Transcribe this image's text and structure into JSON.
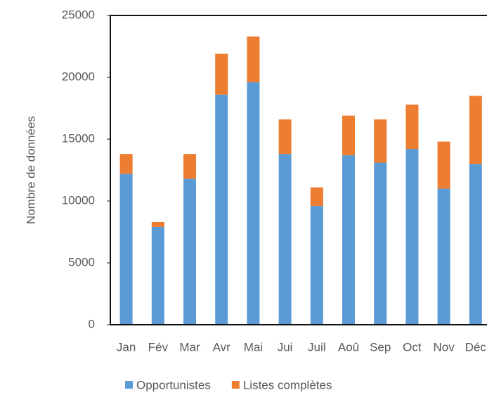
{
  "chart_data": {
    "type": "stacked_bar",
    "ylabel": "Nombre de données",
    "categories": [
      "Jan",
      "Fév",
      "Mar",
      "Avr",
      "Mai",
      "Jui",
      "Juil",
      "Aoû",
      "Sep",
      "Oct",
      "Nov",
      "Déc"
    ],
    "series": [
      {
        "name": "Opportunistes",
        "color": "#5b9bd5",
        "values": [
          12200,
          7900,
          11800,
          18600,
          19600,
          13800,
          9600,
          13700,
          13100,
          14200,
          11000,
          13000
        ]
      },
      {
        "name": "Listes complètes",
        "color": "#ed7d31",
        "values": [
          1600,
          400,
          2000,
          3300,
          3700,
          2800,
          1500,
          3200,
          3500,
          3600,
          3800,
          5500
        ]
      }
    ],
    "ylim": [
      0,
      25000
    ],
    "yticks": [
      0,
      5000,
      10000,
      15000,
      20000,
      25000
    ],
    "grid": false,
    "legend": "bottom"
  }
}
